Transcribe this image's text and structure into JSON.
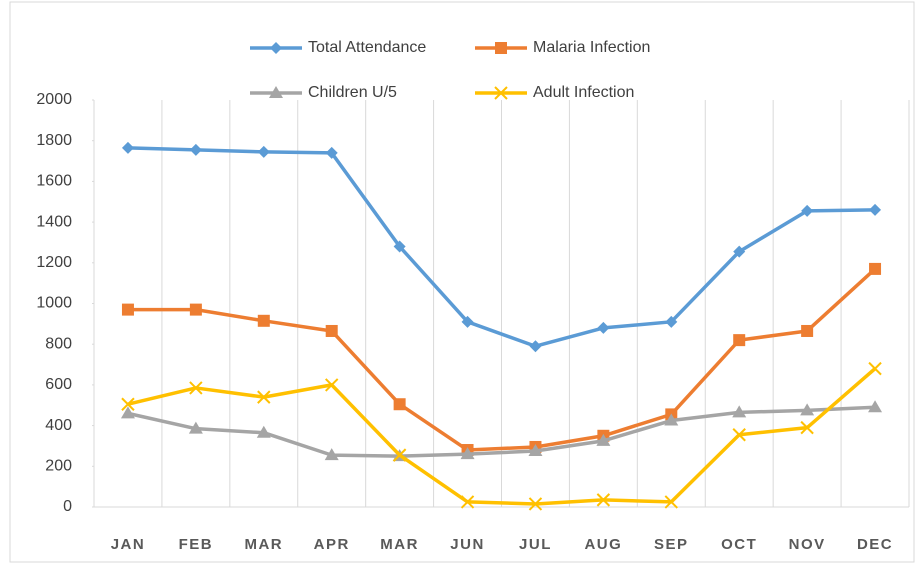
{
  "chart_data": {
    "type": "line",
    "categories": [
      "JAN",
      "FEB",
      "MAR",
      "APR",
      "MAR",
      "JUN",
      "JUL",
      "AUG",
      "SEP",
      "OCT",
      "NOV",
      "DEC"
    ],
    "series": [
      {
        "name": "Total Attendance",
        "color": "#5b9bd5",
        "marker": "diamond",
        "values": [
          1765,
          1755,
          1745,
          1740,
          1280,
          910,
          790,
          880,
          910,
          1255,
          1455,
          1460
        ]
      },
      {
        "name": "Malaria Infection",
        "color": "#ed7d31",
        "marker": "square",
        "values": [
          970,
          970,
          915,
          865,
          505,
          280,
          295,
          350,
          455,
          820,
          865,
          1170
        ]
      },
      {
        "name": "Children U/5",
        "color": "#a5a5a5",
        "marker": "triangle",
        "values": [
          460,
          385,
          365,
          255,
          250,
          260,
          275,
          325,
          425,
          465,
          475,
          490
        ]
      },
      {
        "name": "Adult Infection",
        "color": "#ffc000",
        "marker": "x",
        "values": [
          505,
          585,
          540,
          600,
          255,
          25,
          15,
          35,
          25,
          355,
          390,
          680
        ]
      }
    ],
    "ylim": [
      0,
      2000
    ],
    "yticks": [
      0,
      200,
      400,
      600,
      800,
      1000,
      1200,
      1400,
      1600,
      1800,
      2000
    ],
    "grid": false,
    "x_grid": true,
    "legend": "top"
  }
}
